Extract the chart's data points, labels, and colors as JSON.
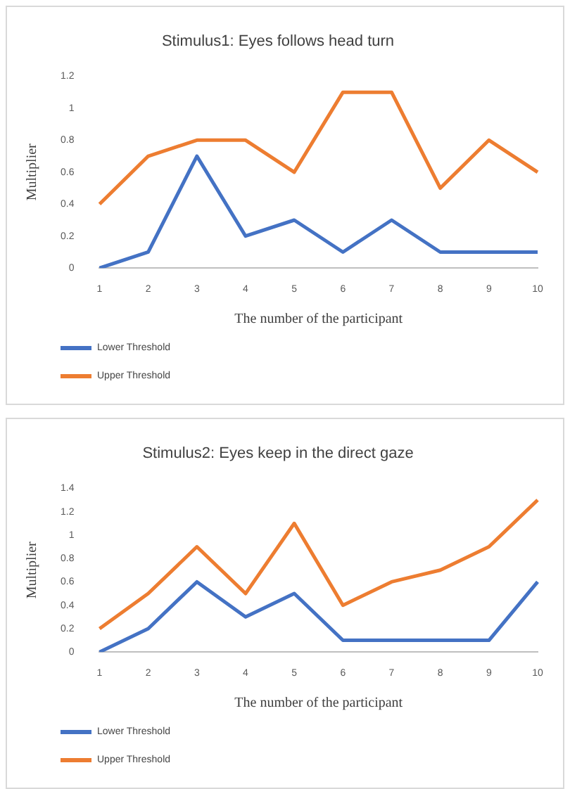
{
  "chart_data": [
    {
      "type": "line",
      "title": "Stimulus1: Eyes follows head turn",
      "xlabel": "The number of the participant",
      "ylabel": "Multiplier",
      "categories": [
        "1",
        "2",
        "3",
        "4",
        "5",
        "6",
        "7",
        "8",
        "9",
        "10"
      ],
      "series": [
        {
          "name": "Lower Threshold",
          "color": "#4472c4",
          "values": [
            0,
            0.1,
            0.7,
            0.2,
            0.3,
            0.1,
            0.3,
            0.1,
            0.1,
            0.1
          ]
        },
        {
          "name": "Upper Threshold",
          "color": "#ed7d31",
          "values": [
            0.4,
            0.7,
            0.8,
            0.8,
            0.6,
            1.1,
            1.1,
            0.5,
            0.8,
            0.6
          ]
        }
      ],
      "ylim": [
        0,
        1.2
      ],
      "yticks": [
        0,
        0.2,
        0.4,
        0.6,
        0.8,
        1,
        1.2
      ],
      "grid": false,
      "legend": "bottom left",
      "marker": "none",
      "line_style": "solid"
    },
    {
      "type": "line",
      "title": "Stimulus2: Eyes keep in the direct gaze",
      "xlabel": "The number of the participant",
      "ylabel": "Multiplier",
      "categories": [
        "1",
        "2",
        "3",
        "4",
        "5",
        "6",
        "7",
        "8",
        "9",
        "10"
      ],
      "series": [
        {
          "name": "Lower Threshold",
          "color": "#4472c4",
          "values": [
            0,
            0.2,
            0.6,
            0.3,
            0.5,
            0.1,
            0.1,
            0.1,
            0.1,
            0.6
          ]
        },
        {
          "name": "Upper Threshold",
          "color": "#ed7d31",
          "values": [
            0.2,
            0.5,
            0.9,
            0.5,
            1.1,
            0.4,
            0.6,
            0.7,
            0.9,
            1.3
          ]
        }
      ],
      "ylim": [
        0,
        1.4
      ],
      "yticks": [
        0,
        0.2,
        0.4,
        0.6,
        0.8,
        1,
        1.2,
        1.4
      ],
      "grid": false,
      "legend": "bottom left",
      "marker": "none",
      "line_style": "solid"
    }
  ]
}
